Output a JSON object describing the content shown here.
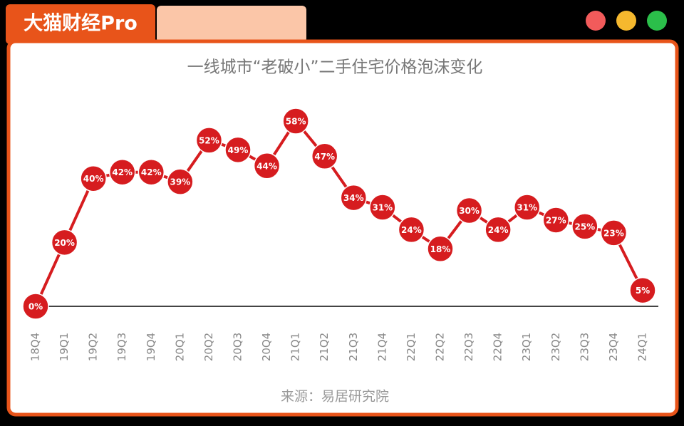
{
  "brand": "大猫财经Pro",
  "chart_data": {
    "type": "line",
    "title": "一线城市“老破小”二手住宅价格泡沫变化",
    "source": "来源：易居研究院",
    "categories": [
      "18Q4",
      "19Q1",
      "19Q2",
      "19Q3",
      "19Q4",
      "20Q1",
      "20Q2",
      "20Q3",
      "20Q4",
      "21Q1",
      "21Q2",
      "21Q3",
      "21Q4",
      "22Q1",
      "22Q2",
      "22Q3",
      "22Q4",
      "23Q1",
      "23Q2",
      "23Q3",
      "23Q4",
      "24Q1"
    ],
    "values": [
      0,
      20,
      40,
      42,
      42,
      39,
      52,
      49,
      44,
      58,
      47,
      34,
      31,
      24,
      18,
      30,
      24,
      31,
      27,
      25,
      23,
      5
    ],
    "value_labels": [
      "0%",
      "20%",
      "40%",
      "42%",
      "42%",
      "39%",
      "52%",
      "49%",
      "44%",
      "58%",
      "47%",
      "34%",
      "31%",
      "24%",
      "18%",
      "30%",
      "24%",
      "31%",
      "27%",
      "25%",
      "23%",
      "5%"
    ],
    "color": "#d61c1f"
  }
}
